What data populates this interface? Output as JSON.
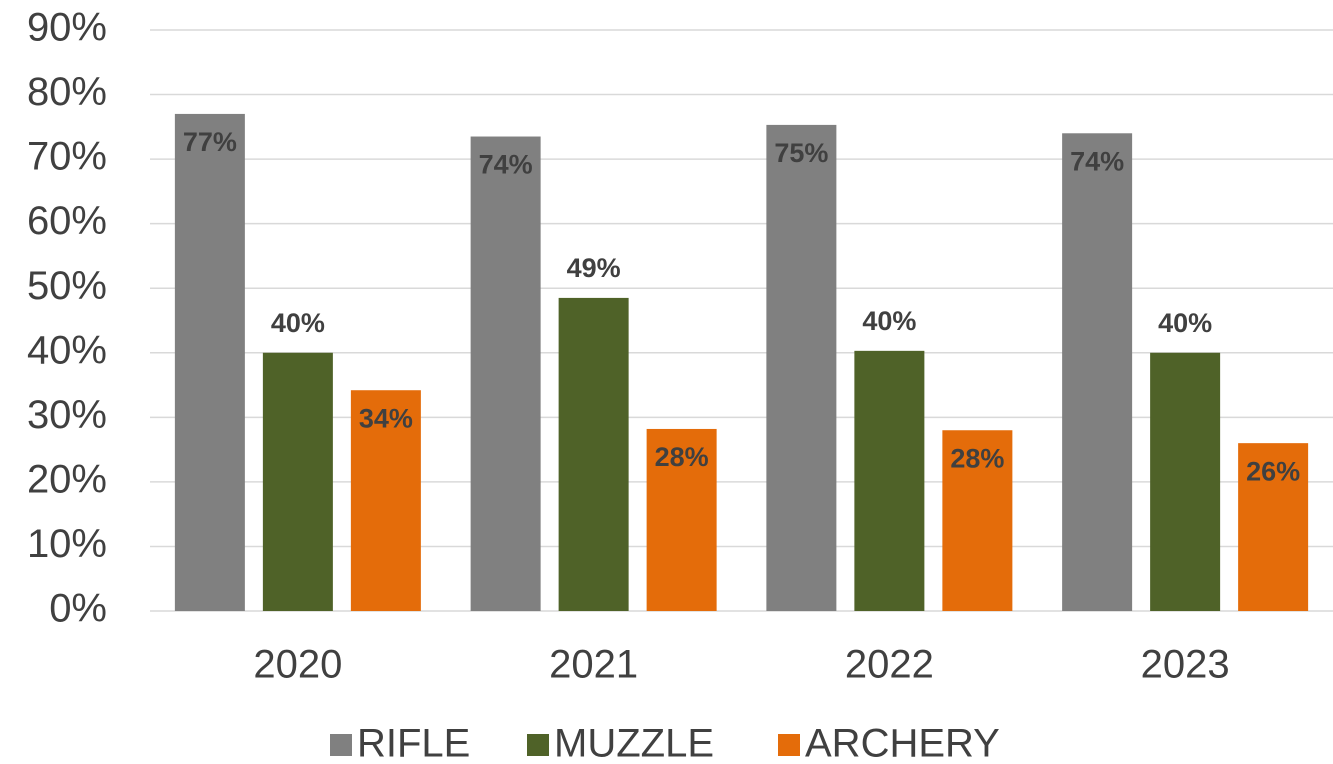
{
  "chart_data": {
    "type": "bar",
    "categories": [
      "2020",
      "2021",
      "2022",
      "2023"
    ],
    "series": [
      {
        "name": "RIFLE",
        "color": "#808080",
        "values": [
          77,
          73.5,
          75.3,
          74
        ],
        "value_labels": [
          "77%",
          "74%",
          "75%",
          "74%"
        ]
      },
      {
        "name": "MUZZLE",
        "color": "#4f6228",
        "values": [
          40,
          48.5,
          40.3,
          40
        ],
        "value_labels": [
          "40%",
          "49%",
          "40%",
          "40%"
        ]
      },
      {
        "name": "ARCHERY",
        "color": "#e46c0a",
        "values": [
          34.2,
          28.2,
          28,
          26
        ],
        "value_labels": [
          "34%",
          "28%",
          "28%",
          "26%"
        ]
      }
    ],
    "ylim": [
      0,
      90
    ],
    "yticks": [
      {
        "value": 0,
        "label": "0%"
      },
      {
        "value": 10,
        "label": "10%"
      },
      {
        "value": 20,
        "label": "20%"
      },
      {
        "value": 30,
        "label": "30%"
      },
      {
        "value": 40,
        "label": "40%"
      },
      {
        "value": 50,
        "label": "50%"
      },
      {
        "value": 60,
        "label": "60%"
      },
      {
        "value": 70,
        "label": "70%"
      },
      {
        "value": 80,
        "label": "80%"
      },
      {
        "value": 90,
        "label": "90%"
      }
    ],
    "grid": true,
    "legend": "bottom"
  }
}
